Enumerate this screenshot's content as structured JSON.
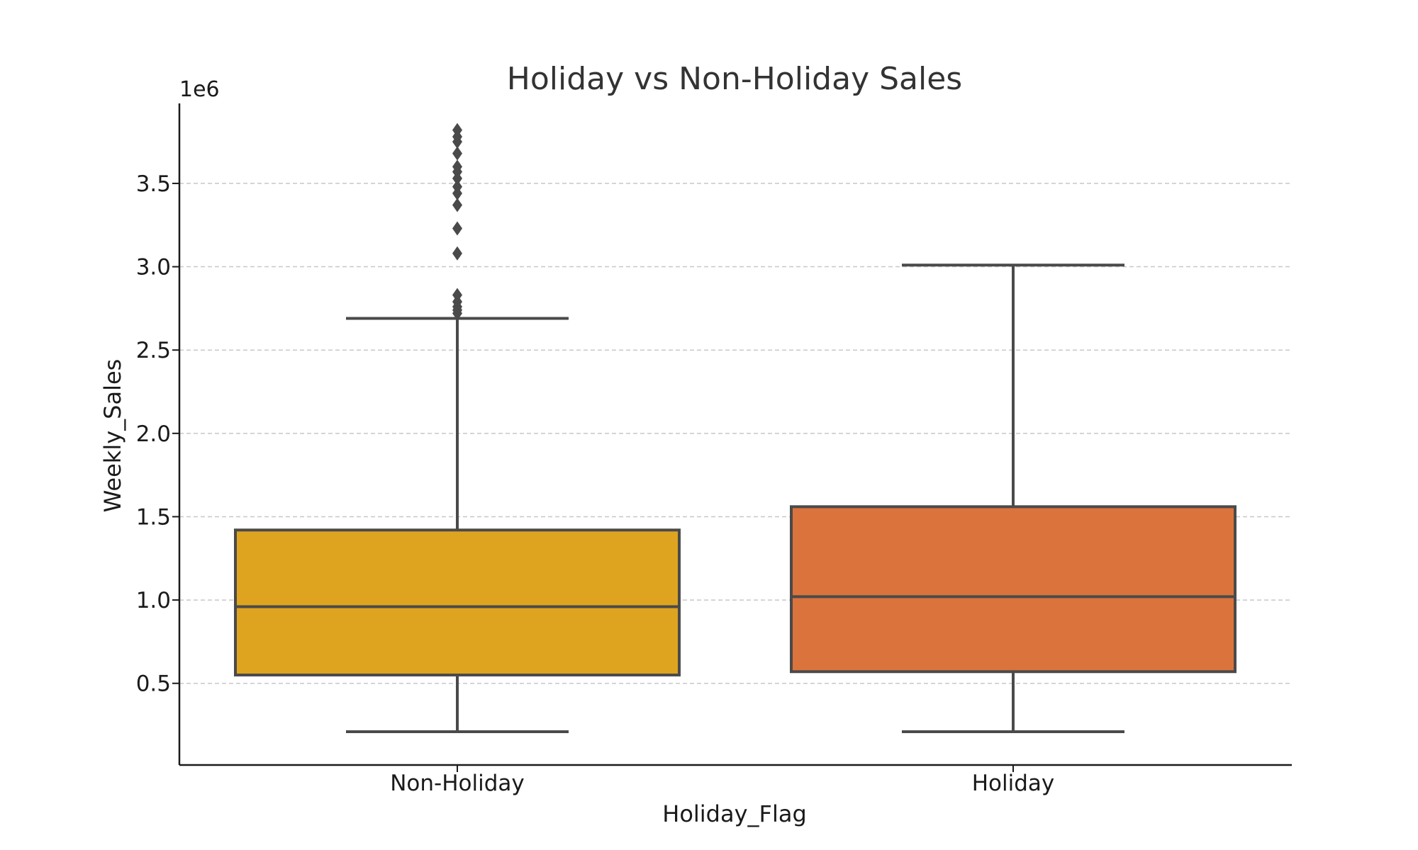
{
  "chart_data": {
    "type": "box",
    "title": "Holiday vs Non-Holiday Sales",
    "xlabel": "Holiday_Flag",
    "ylabel": "Weekly_Sales",
    "y_offset_label": "1e6",
    "ylim": [
      0.01,
      3.98
    ],
    "y_ticks": [
      0.5,
      1.0,
      1.5,
      2.0,
      2.5,
      3.0,
      3.5
    ],
    "y_tick_labels": [
      "0.5",
      "1.0",
      "1.5",
      "2.0",
      "2.5",
      "3.0",
      "3.5"
    ],
    "grid": true,
    "categories": [
      "Non-Holiday",
      "Holiday"
    ],
    "boxes": [
      {
        "category": "Non-Holiday",
        "color": "#DEA420",
        "whisker_low": 0.21,
        "q1": 0.55,
        "median": 0.96,
        "q3": 1.42,
        "whisker_high": 2.69,
        "outliers": [
          2.72,
          2.74,
          2.76,
          2.79,
          2.83,
          3.08,
          3.23,
          3.37,
          3.44,
          3.48,
          3.53,
          3.57,
          3.6,
          3.68,
          3.75,
          3.78,
          3.82
        ]
      },
      {
        "category": "Holiday",
        "color": "#DB733C",
        "whisker_low": 0.21,
        "q1": 0.57,
        "median": 1.02,
        "q3": 1.56,
        "whisker_high": 3.01,
        "outliers": []
      }
    ]
  }
}
